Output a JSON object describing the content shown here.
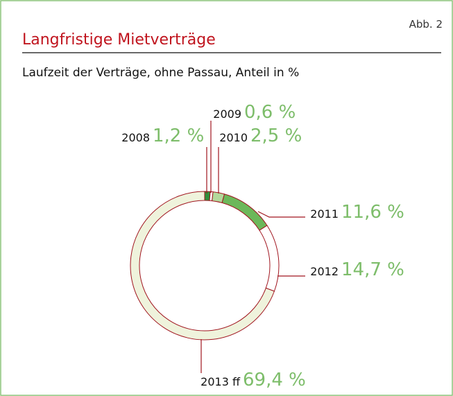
{
  "chart_data": {
    "type": "donut",
    "figure_label": "Abb. 2",
    "title": "Langfristige Mietverträge",
    "subtitle": "Laufzeit der Verträge, ohne Passau, Anteil in %",
    "categories": [
      "2008",
      "2009",
      "2010",
      "2011",
      "2012",
      "2013 ff"
    ],
    "values": [
      1.2,
      0.6,
      2.5,
      11.6,
      14.7,
      69.4
    ],
    "value_labels": [
      "1,2 %",
      "0,6 %",
      "2,5 %",
      "11,6 %",
      "14,7 %",
      "69,4 %"
    ],
    "colors": [
      "#2f8f3c",
      "#ffffff",
      "#b3d89b",
      "#6cb85a",
      "#ffffff",
      "#eff3dc"
    ]
  }
}
